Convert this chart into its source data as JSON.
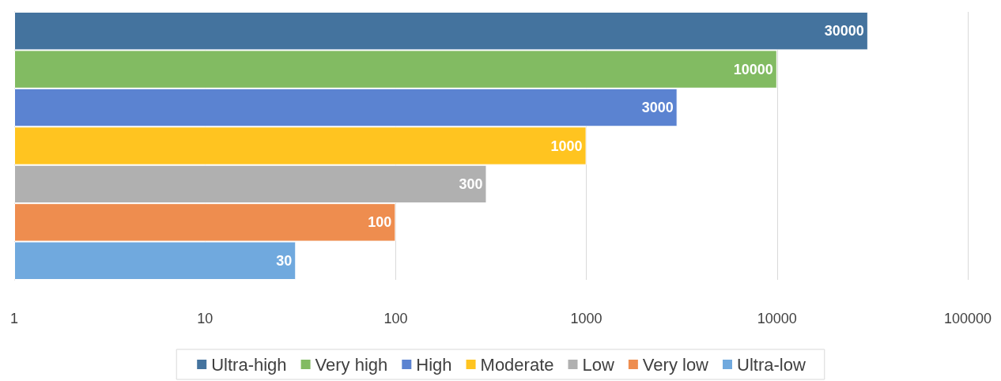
{
  "chart_data": {
    "type": "bar",
    "orientation": "horizontal",
    "categories": [
      null
    ],
    "log": "x",
    "xlim": [
      1,
      100000
    ],
    "xticks": [
      1,
      10,
      100,
      1000,
      10000,
      100000
    ],
    "grid": "x",
    "legend": "bottom",
    "data_labels": true,
    "series": [
      {
        "name": "Ultra-high",
        "color": "#44739e",
        "values": [
          30000
        ]
      },
      {
        "name": "Very high",
        "color": "#82bb62",
        "values": [
          10000
        ]
      },
      {
        "name": "High",
        "color": "#5b83d1",
        "values": [
          3000
        ]
      },
      {
        "name": "Moderate",
        "color": "#ffc420",
        "values": [
          1000
        ]
      },
      {
        "name": "Low",
        "color": "#b0b0b0",
        "values": [
          300
        ]
      },
      {
        "name": "Very low",
        "color": "#ee8d4f",
        "values": [
          100
        ]
      },
      {
        "name": "Ultra-low",
        "color": "#70a9de",
        "values": [
          30
        ]
      }
    ]
  }
}
